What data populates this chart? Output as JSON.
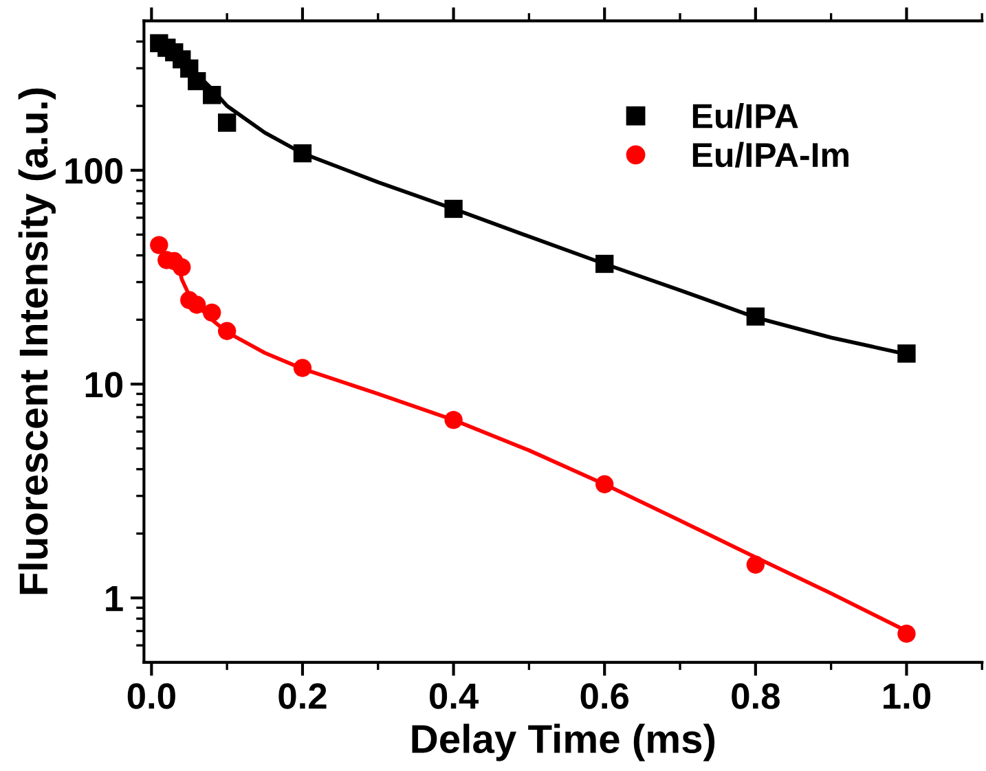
{
  "chart_data": {
    "type": "scatter",
    "xlabel": "Delay Time (ms)",
    "ylabel": "Fluorescent Intensity (a.u.)",
    "log": "y",
    "xlim": [
      -0.01,
      1.1
    ],
    "ylim": [
      0.5,
      500
    ],
    "xticks": [
      {
        "value": 0.0,
        "label": "0.0"
      },
      {
        "value": 0.1,
        "label": null
      },
      0.2,
      {
        "value": 0.3,
        "label": null
      },
      0.4,
      {
        "value": 0.5,
        "label": null
      },
      0.6,
      {
        "value": 0.7,
        "label": null
      },
      0.8,
      {
        "value": 0.9,
        "label": null
      },
      {
        "value": 1.0,
        "label": "1.0"
      },
      {
        "value": 1.1,
        "label": null
      }
    ],
    "yticks": [
      {
        "value": 0.6,
        "label": null
      },
      {
        "value": 0.7,
        "label": null
      },
      {
        "value": 0.8,
        "label": null
      },
      {
        "value": 0.9,
        "label": null
      },
      1,
      {
        "value": 2,
        "label": null
      },
      {
        "value": 3,
        "label": null
      },
      {
        "value": 4,
        "label": null
      },
      {
        "value": 5,
        "label": null
      },
      {
        "value": 6,
        "label": null
      },
      {
        "value": 7,
        "label": null
      },
      {
        "value": 8,
        "label": null
      },
      {
        "value": 9,
        "label": null
      },
      10,
      {
        "value": 20,
        "label": null
      },
      {
        "value": 30,
        "label": null
      },
      {
        "value": 40,
        "label": null
      },
      {
        "value": 50,
        "label": null
      },
      {
        "value": 60,
        "label": null
      },
      {
        "value": 70,
        "label": null
      },
      {
        "value": 80,
        "label": null
      },
      {
        "value": 90,
        "label": null
      },
      100,
      {
        "value": 200,
        "label": null
      },
      {
        "value": 300,
        "label": null
      },
      {
        "value": 400,
        "label": null
      }
    ],
    "grid": false,
    "legend": "top right",
    "series": [
      {
        "name": "Eu/IPA",
        "marker": "square",
        "color": "#000000",
        "x": [
          0.01,
          0.02,
          0.03,
          0.04,
          0.05,
          0.06,
          0.08,
          0.1,
          0.2,
          0.4,
          0.6,
          0.8,
          1.0
        ],
        "values": [
          393,
          374,
          356,
          330,
          299,
          261,
          225,
          167,
          120,
          66,
          36.5,
          20.7,
          13.9
        ]
      },
      {
        "name": "Eu/IPA-Im",
        "marker": "circle",
        "color": "#ff0000",
        "x": [
          0.01,
          0.02,
          0.03,
          0.04,
          0.05,
          0.06,
          0.08,
          0.1,
          0.2,
          0.4,
          0.6,
          0.8,
          1.0
        ],
        "values": [
          44.7,
          38,
          37.6,
          35.2,
          24.7,
          23.5,
          21.6,
          17.7,
          11.9,
          6.8,
          3.4,
          1.43,
          0.68
        ]
      },
      {
        "type": "line",
        "marker": "none",
        "color": "#000000",
        "x": [
          0.01,
          0.03,
          0.05,
          0.08,
          0.1,
          0.15,
          0.2,
          0.3,
          0.4,
          0.5,
          0.6,
          0.7,
          0.8,
          0.9,
          1.0
        ],
        "values": [
          390,
          345,
          305,
          240,
          200,
          150,
          120,
          88,
          66,
          49,
          36.5,
          27.5,
          20.5,
          16.5,
          13.8
        ]
      },
      {
        "type": "line",
        "marker": "none",
        "color": "#ff0000",
        "x": [
          0.035,
          0.04,
          0.05,
          0.06,
          0.08,
          0.1,
          0.15,
          0.2,
          0.3,
          0.4,
          0.5,
          0.6,
          0.7,
          0.8,
          0.9,
          1.0
        ],
        "values": [
          37,
          31,
          26,
          23.5,
          20,
          17.5,
          14,
          11.8,
          9,
          6.8,
          4.9,
          3.4,
          2.3,
          1.55,
          1.05,
          0.7
        ]
      }
    ]
  }
}
